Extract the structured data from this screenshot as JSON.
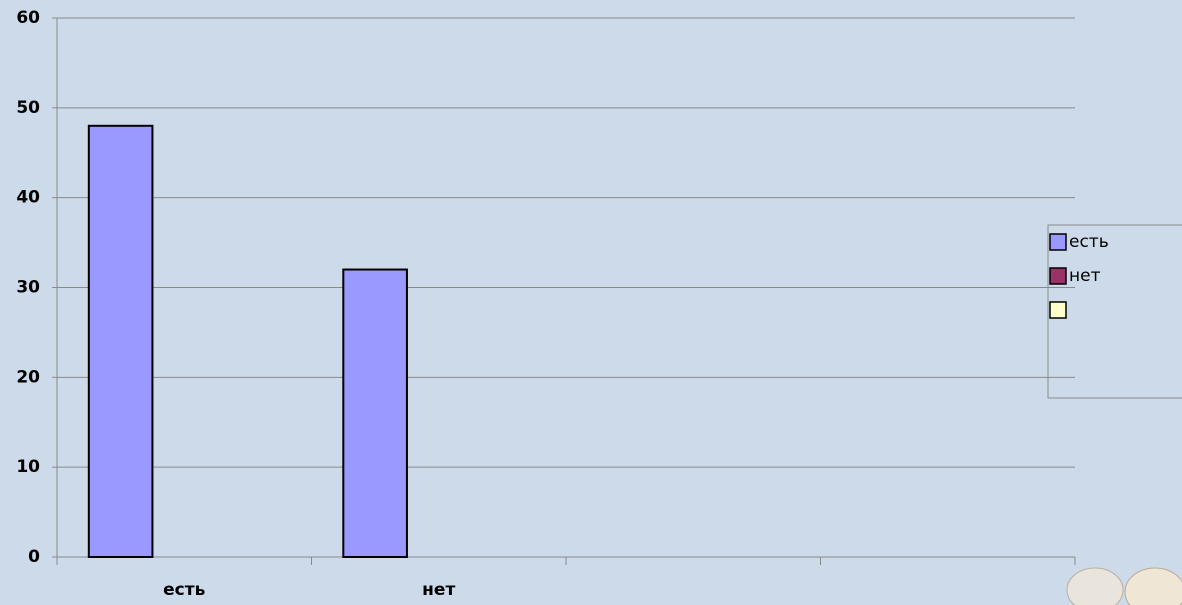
{
  "chart_data": {
    "type": "bar",
    "categories": [
      "есть",
      "нет",
      null,
      null
    ],
    "series": [
      {
        "name": "есть",
        "color": "#9999ff",
        "values": [
          48,
          32,
          0,
          0
        ]
      },
      {
        "name": "нет",
        "color": "#993366",
        "values": [
          0,
          0,
          0,
          0
        ]
      },
      {
        "color": "#ffffcc",
        "values": [
          0,
          0,
          0,
          0
        ]
      }
    ],
    "ylim": [
      0,
      60
    ],
    "yticks": [
      0,
      10,
      20,
      30,
      40,
      50,
      60
    ],
    "grid": true,
    "legend": "right"
  }
}
